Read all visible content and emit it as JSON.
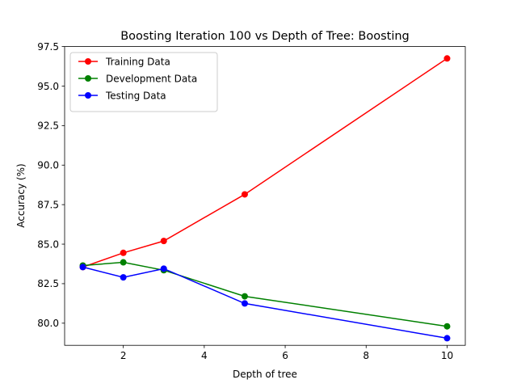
{
  "chart_data": {
    "type": "line",
    "title": "Boosting Iteration 100 vs Depth of Tree: Boosting",
    "xlabel": "Depth of tree",
    "ylabel": "Accuracy (%)",
    "x": [
      1,
      2,
      3,
      5,
      10
    ],
    "xlim": [
      0.55,
      10.45
    ],
    "ylim": [
      78.6,
      97.5
    ],
    "xticks": [
      2,
      4,
      6,
      8,
      10
    ],
    "xtick_labels": [
      "2",
      "4",
      "6",
      "8",
      "10"
    ],
    "yticks": [
      80.0,
      82.5,
      85.0,
      87.5,
      90.0,
      92.5,
      95.0,
      97.5
    ],
    "ytick_labels": [
      "80.0",
      "82.5",
      "85.0",
      "87.5",
      "90.0",
      "92.5",
      "95.0",
      "97.5"
    ],
    "grid": false,
    "legend_position": "top-left",
    "series": [
      {
        "name": "Training Data",
        "color": "#ff0000",
        "values": [
          83.55,
          84.45,
          85.2,
          88.15,
          96.75
        ]
      },
      {
        "name": "Development Data",
        "color": "#008000",
        "values": [
          83.65,
          83.85,
          83.35,
          81.7,
          79.8
        ]
      },
      {
        "name": "Testing Data",
        "color": "#0000ff",
        "values": [
          83.55,
          82.9,
          83.45,
          81.25,
          79.05
        ]
      }
    ]
  }
}
